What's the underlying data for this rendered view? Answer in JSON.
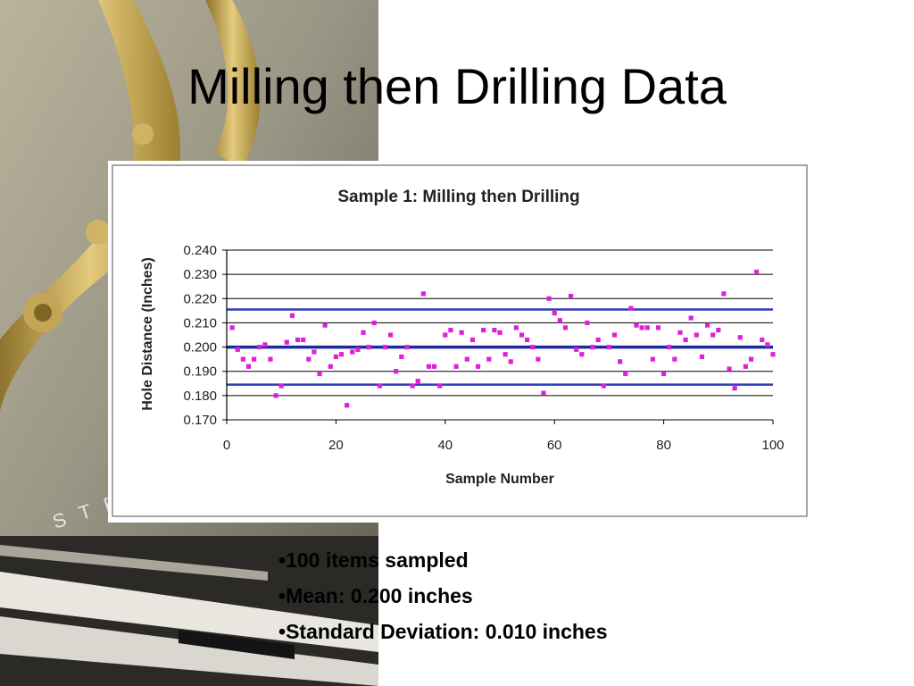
{
  "slide": {
    "title": "Milling then Drilling Data",
    "bullets": [
      "100 items sampled",
      "Mean: 0.200 inches",
      "Standard Deviation: 0.010 inches"
    ],
    "background_text": "STE"
  },
  "colors": {
    "points": "#e020d8",
    "limit_lines": "#2f3cb8",
    "center_line": "#1e2a9a",
    "gridlines": "#000000",
    "chart_text": "#222222"
  },
  "chart_data": {
    "type": "scatter",
    "title": "Sample 1: Milling then Drilling",
    "xlabel": "Sample Number",
    "ylabel": "Hole Distance (Inches)",
    "xlim": [
      0,
      100
    ],
    "ylim": [
      0.17,
      0.24
    ],
    "x_ticks": [
      0,
      20,
      40,
      60,
      80,
      100
    ],
    "y_ticks": [
      0.17,
      0.18,
      0.19,
      0.2,
      0.21,
      0.22,
      0.23,
      0.24
    ],
    "x_tick_labels": [
      "0",
      "20",
      "40",
      "60",
      "80",
      "100"
    ],
    "y_tick_labels": [
      "0.170",
      "0.180",
      "0.190",
      "0.200",
      "0.210",
      "0.220",
      "0.230",
      "0.240"
    ],
    "grid": "horizontal",
    "reference_lines": [
      {
        "name": "upper limit",
        "y": 0.2155
      },
      {
        "name": "mean",
        "y": 0.2
      },
      {
        "name": "lower limit",
        "y": 0.1845
      }
    ],
    "x": [
      1,
      2,
      3,
      4,
      5,
      6,
      7,
      8,
      9,
      10,
      11,
      12,
      13,
      14,
      15,
      16,
      17,
      18,
      19,
      20,
      21,
      22,
      23,
      24,
      25,
      26,
      27,
      28,
      29,
      30,
      31,
      32,
      33,
      34,
      35,
      36,
      37,
      38,
      39,
      40,
      41,
      42,
      43,
      44,
      45,
      46,
      47,
      48,
      49,
      50,
      51,
      52,
      53,
      54,
      55,
      56,
      57,
      58,
      59,
      60,
      61,
      62,
      63,
      64,
      65,
      66,
      67,
      68,
      69,
      70,
      71,
      72,
      73,
      74,
      75,
      76,
      77,
      78,
      79,
      80,
      81,
      82,
      83,
      84,
      85,
      86,
      87,
      88,
      89,
      90,
      91,
      92,
      93,
      94,
      95,
      96,
      97,
      98,
      99,
      100
    ],
    "y": [
      0.208,
      0.199,
      0.195,
      0.192,
      0.195,
      0.2,
      0.201,
      0.195,
      0.18,
      0.184,
      0.202,
      0.213,
      0.203,
      0.203,
      0.195,
      0.198,
      0.189,
      0.209,
      0.192,
      0.196,
      0.197,
      0.176,
      0.198,
      0.199,
      0.206,
      0.2,
      0.21,
      0.184,
      0.2,
      0.205,
      0.19,
      0.196,
      0.2,
      0.184,
      0.186,
      0.222,
      0.192,
      0.192,
      0.184,
      0.205,
      0.207,
      0.192,
      0.206,
      0.195,
      0.203,
      0.192,
      0.207,
      0.195,
      0.207,
      0.206,
      0.197,
      0.194,
      0.208,
      0.205,
      0.203,
      0.2,
      0.195,
      0.181,
      0.22,
      0.214,
      0.211,
      0.208,
      0.221,
      0.199,
      0.197,
      0.21,
      0.2,
      0.203,
      0.184,
      0.2,
      0.205,
      0.194,
      0.189,
      0.216,
      0.209,
      0.208,
      0.208,
      0.195,
      0.208,
      0.189,
      0.2,
      0.195,
      0.206,
      0.203,
      0.212,
      0.205,
      0.196,
      0.209,
      0.205,
      0.207,
      0.222,
      0.191,
      0.183,
      0.204,
      0.192,
      0.195,
      0.231,
      0.203,
      0.201,
      0.197
    ]
  }
}
